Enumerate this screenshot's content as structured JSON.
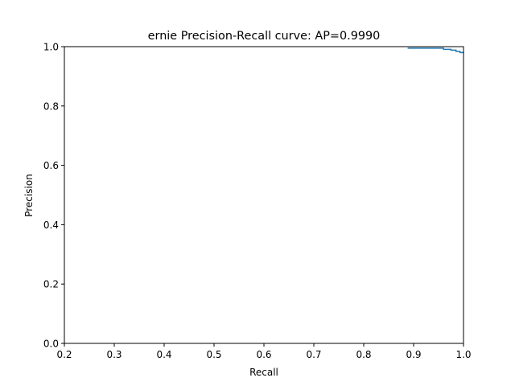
{
  "chart_data": {
    "type": "line",
    "title": "ernie Precision-Recall curve: AP=0.9990",
    "xlabel": "Recall",
    "ylabel": "Precision",
    "xlim": [
      0.2,
      1.0
    ],
    "ylim": [
      0.0,
      1.0
    ],
    "xticks": [
      0.2,
      0.3,
      0.4,
      0.5,
      0.6,
      0.7,
      0.8,
      0.9,
      1.0
    ],
    "xtick_labels": [
      "0.2",
      "0.3",
      "0.4",
      "0.5",
      "0.6",
      "0.7",
      "0.8",
      "0.9",
      "1.0"
    ],
    "yticks": [
      0.0,
      0.2,
      0.4,
      0.6,
      0.8,
      1.0
    ],
    "ytick_labels": [
      "0.0",
      "0.2",
      "0.4",
      "0.6",
      "0.8",
      "1.0"
    ],
    "grid": false,
    "drawstyle": "steps-post",
    "series": [
      {
        "name": "precision-recall",
        "color": "#1f77b4",
        "x": [
          0.888,
          0.94,
          0.96,
          0.975,
          0.985,
          0.993,
          1.0
        ],
        "y": [
          0.995,
          0.995,
          0.991,
          0.988,
          0.984,
          0.98,
          0.978
        ]
      }
    ]
  }
}
